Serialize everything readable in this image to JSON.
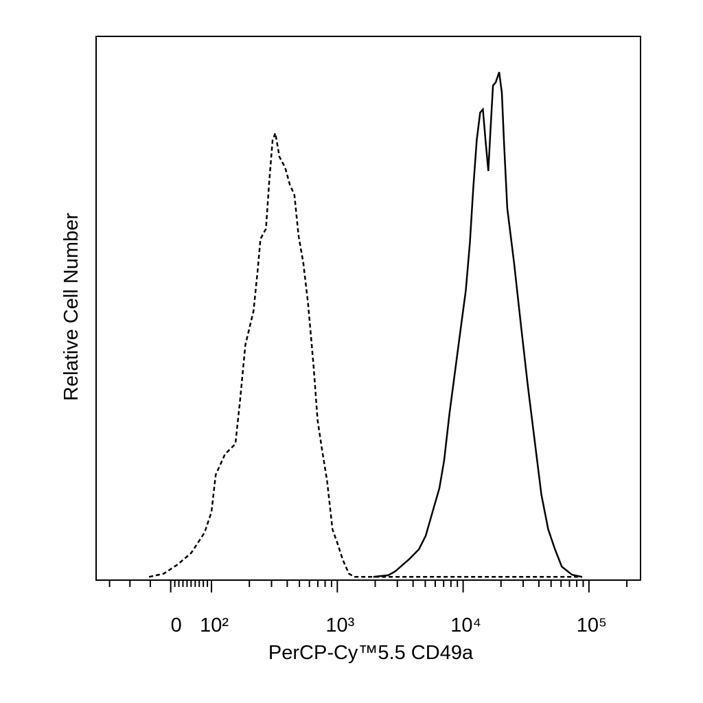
{
  "chart_data": {
    "type": "line",
    "x_label": "PerCP-Cy™5.5 CD49a",
    "y_label": "Relative Cell Number",
    "xscale": "biexponential",
    "xlim": [
      -183,
      257000
    ],
    "ylim": [
      -0.6,
      100
    ],
    "xticks": [
      0,
      {
        "value": 100,
        "label": "10²"
      },
      {
        "value": 1000,
        "label": "10³"
      },
      {
        "value": 10000,
        "label": "10⁴"
      },
      {
        "value": 100000,
        "label": "10⁵"
      }
    ],
    "xminorticks": [
      -150,
      -100,
      -50,
      10,
      20,
      30,
      40,
      50,
      60,
      70,
      80,
      90,
      200,
      300,
      400,
      500,
      600,
      700,
      800,
      900,
      2000,
      3000,
      4000,
      5000,
      6000,
      7000,
      8000,
      9000,
      20000,
      30000,
      40000,
      50000,
      60000,
      70000,
      80000,
      90000,
      200000
    ],
    "series": [
      {
        "color": "#000000",
        "linestyle": "dashed",
        "x": [
          -53,
          -17,
          17,
          50,
          83,
          100,
          108,
          128,
          155,
          169,
          186,
          216,
          233,
          245,
          271,
          288,
          306,
          322,
          347,
          384,
          419,
          456,
          492,
          537,
          586,
          647,
          697,
          751,
          830,
          916,
          1000,
          1104,
          1236,
          1365,
          3697,
          12830,
          88300
        ],
        "values": [
          0,
          0.6,
          2.3,
          4.4,
          8.2,
          12.0,
          18.9,
          22.7,
          24.6,
          32.8,
          42.9,
          49.2,
          56.8,
          62.5,
          64.4,
          73.2,
          80.8,
          82.1,
          77.7,
          75.8,
          72.6,
          70.7,
          63.1,
          58.1,
          50.5,
          39.1,
          29.0,
          24.0,
          17.7,
          8.8,
          6.3,
          3.2,
          0.6,
          0,
          0,
          0,
          0
        ]
      },
      {
        "color": "#000000",
        "linestyle": "solid",
        "x": [
          1933,
          2543,
          2880,
          3697,
          4454,
          5044,
          5713,
          6471,
          7063,
          7798,
          8610,
          9506,
          10500,
          11320,
          12050,
          12830,
          13650,
          14360,
          15070,
          15850,
          16440,
          17280,
          18160,
          19330,
          20310,
          21090,
          22440,
          25410,
          28770,
          32660,
          36980,
          41880,
          47430,
          53700,
          60810,
          73280,
          88300
        ],
        "values": [
          0,
          0.3,
          1.0,
          3.2,
          5.1,
          7.6,
          12.0,
          16.4,
          21.5,
          30.3,
          37.9,
          45.5,
          53.0,
          61.9,
          72.0,
          80.8,
          85.9,
          86.5,
          80.8,
          75.1,
          82.1,
          90.9,
          91.5,
          93.4,
          89.6,
          80.8,
          68.2,
          58.1,
          46.7,
          35.4,
          25.3,
          15.2,
          8.8,
          5.1,
          1.9,
          0.4,
          0
        ]
      }
    ]
  }
}
